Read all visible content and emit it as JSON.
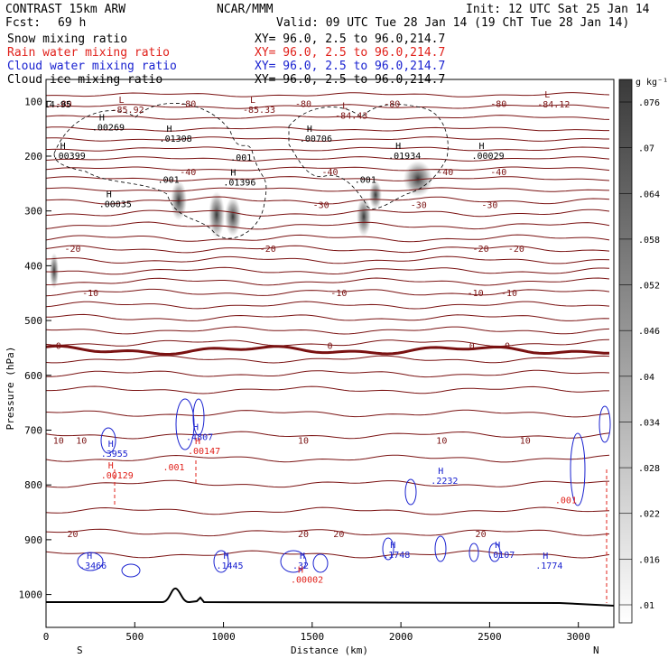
{
  "header": {
    "model": "CONTRAST 15km ARW",
    "center": "NCAR/MMM",
    "init": "Init: 12 UTC Sat 25 Jan 14",
    "fcst_label": "Fcst:",
    "fcst_value": "69 h",
    "valid": "Valid: 09 UTC Tue 28 Jan 14 (19 ChT Tue 28 Jan 14)",
    "fields": [
      {
        "name": "Snow mixing ratio",
        "color": "#000000",
        "xy": "XY=  96.0,  2.5 to  96.0,214.7"
      },
      {
        "name": "Rain water mixing ratio",
        "color": "#e0201a",
        "xy": "XY=  96.0,  2.5 to  96.0,214.7"
      },
      {
        "name": "Cloud water mixing ratio",
        "color": "#1a22d0",
        "xy": "XY=  96.0,  2.5 to  96.0,214.7"
      },
      {
        "name": "Cloud ice mixing ratio",
        "color": "#000000",
        "xy": "XY=  96.0,  2.5 to  96.0,214.7"
      }
    ]
  },
  "chart_data": {
    "type": "cross-section",
    "xlabel": "Distance (km)",
    "ylabel": "Pressure (hPa)",
    "xlim": [
      0,
      3200
    ],
    "ylim": [
      1060,
      60
    ],
    "x_ticks": [
      0,
      500,
      1000,
      1500,
      2000,
      2500,
      3000
    ],
    "y_ticks": [
      100,
      200,
      300,
      400,
      500,
      600,
      700,
      800,
      900,
      1000
    ],
    "end_labels": {
      "left": "S",
      "right": "N"
    },
    "colorbar": {
      "unit": "g kg⁻¹",
      "ticks": [
        ".01",
        ".016",
        ".022",
        ".028",
        ".034",
        ".04",
        ".046",
        ".052",
        ".058",
        ".064",
        ".07",
        ".076"
      ]
    },
    "temperature_contours": [
      {
        "label": "-80",
        "x": [
          100,
          800,
          1450,
          1950,
          2550
        ],
        "p": 110
      },
      {
        "label": "-40",
        "x": [
          800,
          1600,
          2250,
          2550
        ],
        "p": 235
      },
      {
        "label": "-30",
        "x": [
          1550,
          2100,
          2500
        ],
        "p": 295
      },
      {
        "label": "-20",
        "x": [
          150,
          1250,
          2450,
          2650
        ],
        "p": 375
      },
      {
        "label": "-10",
        "x": [
          250,
          1650,
          2420,
          2610
        ],
        "p": 455
      },
      {
        "label": "0",
        "x": [
          70,
          1600,
          2400,
          2600
        ],
        "p": 552
      },
      {
        "label": "10",
        "x": [
          70,
          200,
          1450,
          2230,
          2700
        ],
        "p": 725
      },
      {
        "label": "20",
        "x": [
          150,
          1450,
          1650,
          2450
        ],
        "p": 895
      }
    ],
    "extrema_labels": [
      {
        "text": "-85.92",
        "type": "L",
        "x": 440,
        "p": 118
      },
      {
        "text": "-85.33",
        "type": "L",
        "x": 1180,
        "p": 118
      },
      {
        "text": "-84.43",
        "type": "L",
        "x": 1700,
        "p": 128
      },
      {
        "text": "-84.12",
        "type": "L",
        "x": 2840,
        "p": 108
      },
      {
        "text": "14.95",
        "type": "",
        "x": 60,
        "p": 108
      },
      {
        "text": ".00269",
        "type": "H",
        "x": 330,
        "p": 150
      },
      {
        "text": ".01308",
        "type": "H",
        "x": 710,
        "p": 170
      },
      {
        "text": ".00706",
        "type": "H",
        "x": 1500,
        "p": 170
      },
      {
        "text": ".00399",
        "type": "H",
        "x": 110,
        "p": 202
      },
      {
        "text": ".01934",
        "type": "H",
        "x": 2000,
        "p": 202
      },
      {
        "text": ".00029",
        "type": "H",
        "x": 2470,
        "p": 202
      },
      {
        "text": ".001",
        "type": "",
        "x": 1110,
        "p": 205
      },
      {
        "text": ".001",
        "type": "",
        "x": 700,
        "p": 245
      },
      {
        "text": ".01396",
        "type": "H",
        "x": 1070,
        "p": 250
      },
      {
        "text": ".001",
        "type": "",
        "x": 1810,
        "p": 245
      },
      {
        "text": ".00035",
        "type": "H",
        "x": 370,
        "p": 290
      },
      {
        "text": ".3955",
        "type": "H",
        "x": 380,
        "p": 745
      },
      {
        "text": ".00129",
        "type": "H",
        "x": 380,
        "p": 785
      },
      {
        "text": ".4807",
        "type": "H",
        "x": 860,
        "p": 715
      },
      {
        "text": ".001",
        "type": "",
        "x": 730,
        "p": 770
      },
      {
        "text": ".00147",
        "type": "H",
        "x": 870,
        "p": 740
      },
      {
        "text": ".2232",
        "type": "H",
        "x": 2240,
        "p": 795
      },
      {
        "text": ".001",
        "type": "",
        "x": 2940,
        "p": 830
      },
      {
        "text": ".3466",
        "type": "H",
        "x": 260,
        "p": 950
      },
      {
        "text": ".1445",
        "type": "H",
        "x": 1030,
        "p": 950
      },
      {
        "text": ".32",
        "type": "H",
        "x": 1460,
        "p": 950
      },
      {
        "text": ".00002",
        "type": "H",
        "x": 1450,
        "p": 975
      },
      {
        "text": ".1748",
        "type": "H",
        "x": 1970,
        "p": 930
      },
      {
        "text": ".0107",
        "type": "H",
        "x": 2560,
        "p": 930
      },
      {
        "text": ".1774",
        "type": "H",
        "x": 2830,
        "p": 950
      }
    ]
  }
}
